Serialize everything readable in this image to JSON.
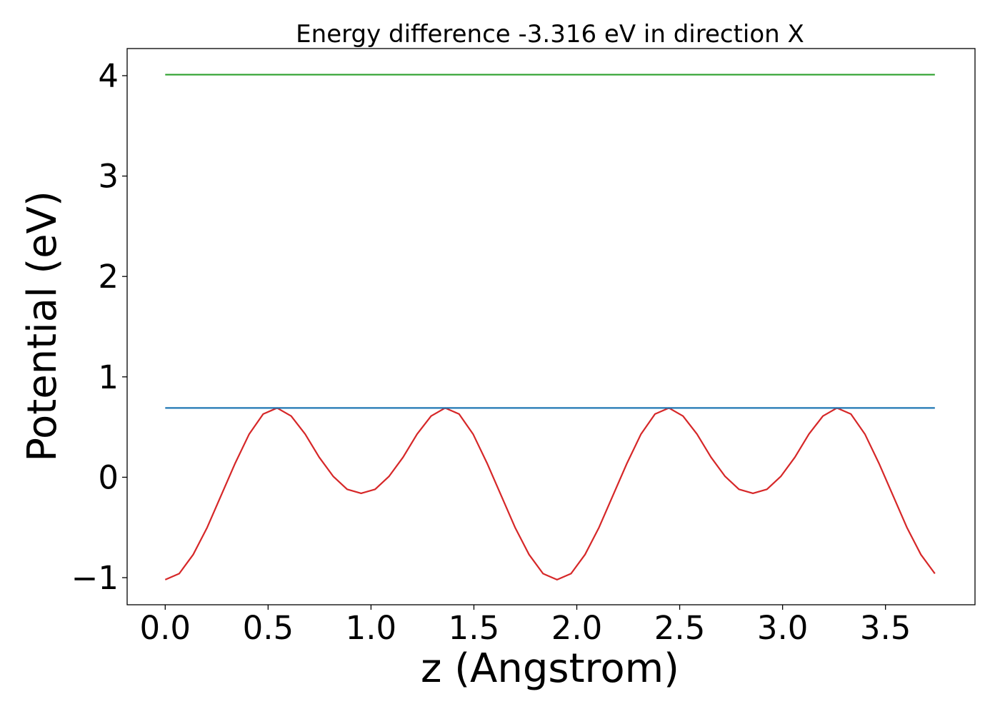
{
  "chart_data": {
    "type": "line",
    "title": "Energy difference -3.316 eV in direction X",
    "xlabel": "z (Angstrom)",
    "ylabel": "Potential (eV)",
    "xlim": [
      -0.185,
      3.935
    ],
    "ylim": [
      -1.27,
      4.27
    ],
    "xticks": [
      0.0,
      0.5,
      1.0,
      1.5,
      2.0,
      2.5,
      3.0,
      3.5
    ],
    "xtick_labels": [
      "0.0",
      "0.5",
      "1.0",
      "1.5",
      "2.0",
      "2.5",
      "3.0",
      "3.5"
    ],
    "yticks": [
      -1,
      0,
      1,
      2,
      3,
      4
    ],
    "ytick_labels": [
      "−1",
      "0",
      "1",
      "2",
      "3",
      "4"
    ],
    "grid": false,
    "series": [
      {
        "color": "#d62728",
        "x": [
          0.0,
          0.068,
          0.136,
          0.204,
          0.272,
          0.34,
          0.408,
          0.476,
          0.544,
          0.612,
          0.68,
          0.748,
          0.816,
          0.884,
          0.952,
          1.02,
          1.088,
          1.156,
          1.224,
          1.292,
          1.36,
          1.428,
          1.496,
          1.564,
          1.632,
          1.7,
          1.768,
          1.836,
          1.904,
          1.972,
          2.04,
          2.108,
          2.176,
          2.244,
          2.312,
          2.38,
          2.448,
          2.516,
          2.584,
          2.652,
          2.72,
          2.788,
          2.856,
          2.924,
          2.992,
          3.06,
          3.128,
          3.196,
          3.264,
          3.332,
          3.4,
          3.468,
          3.536,
          3.604,
          3.672,
          3.74
        ],
        "y": [
          -1.02,
          -0.96,
          -0.77,
          -0.5,
          -0.18,
          0.14,
          0.43,
          0.63,
          0.69,
          0.61,
          0.43,
          0.2,
          0.01,
          -0.12,
          -0.16,
          -0.12,
          0.01,
          0.2,
          0.43,
          0.61,
          0.69,
          0.63,
          0.43,
          0.14,
          -0.18,
          -0.5,
          -0.77,
          -0.96,
          -1.02,
          -0.96,
          -0.77,
          -0.5,
          -0.18,
          0.14,
          0.43,
          0.63,
          0.69,
          0.61,
          0.43,
          0.2,
          0.01,
          -0.12,
          -0.16,
          -0.12,
          0.01,
          0.2,
          0.43,
          0.61,
          0.69,
          0.63,
          0.43,
          0.14,
          -0.18,
          -0.5,
          -0.77,
          -0.96
        ]
      },
      {
        "color": "#1f77b4",
        "x": [
          0.0,
          3.74
        ],
        "y": [
          0.69,
          0.69
        ]
      },
      {
        "color": "#2ca02c",
        "x": [
          0.0,
          3.74
        ],
        "y": [
          4.01,
          4.01
        ]
      }
    ]
  }
}
